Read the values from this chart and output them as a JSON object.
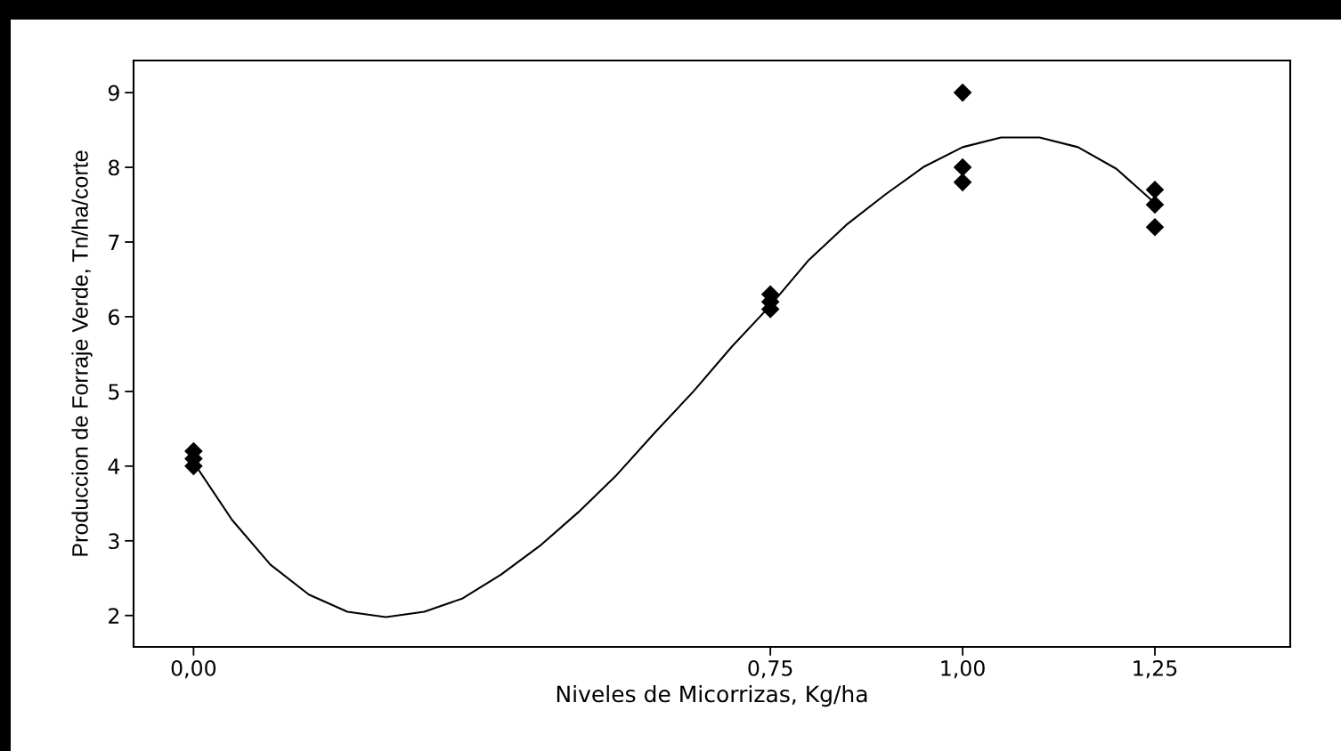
{
  "chart_data": {
    "type": "scatter",
    "xlabel": "Niveles de Micorrizas, Kg/ha",
    "ylabel": "Produccion de Forraje Verde, Tn/ha/corte",
    "xlim": [
      -0.078,
      1.426
    ],
    "ylim": [
      1.58,
      9.43
    ],
    "xticks": [
      {
        "value": 0,
        "label": "0,00"
      },
      {
        "value": 0.75,
        "label": "0,75"
      },
      {
        "value": 1.0,
        "label": "1,00"
      },
      {
        "value": 1.25,
        "label": "1,25"
      }
    ],
    "yticks": [
      2,
      3,
      4,
      5,
      6,
      7,
      8,
      9
    ],
    "grid": false,
    "legend": false,
    "series": [
      {
        "color": "#000000",
        "marker": "diamond",
        "x": [
          0,
          0,
          0,
          0.75,
          0.75,
          0.75,
          1.0,
          1.0,
          1.0,
          1.25,
          1.25,
          1.25
        ],
        "values": [
          4.2,
          4.1,
          4.0,
          6.3,
          6.2,
          6.1,
          9.0,
          8.0,
          7.8,
          7.7,
          7.5,
          7.2
        ]
      },
      {
        "type": "line",
        "color": "#000000",
        "marker": "none",
        "line_style": "solid",
        "x": [
          0,
          0.05,
          0.1,
          0.15,
          0.2,
          0.25,
          0.3,
          0.35,
          0.4,
          0.45,
          0.5,
          0.55,
          0.6,
          0.65,
          0.7,
          0.75,
          0.8,
          0.85,
          0.9,
          0.95,
          1.0,
          1.05,
          1.1,
          1.15,
          1.2,
          1.25
        ],
        "values": [
          4.05,
          3.28,
          2.68,
          2.28,
          2.05,
          1.98,
          2.05,
          2.23,
          2.55,
          2.93,
          3.38,
          3.88,
          4.45,
          5.0,
          5.6,
          6.15,
          6.76,
          7.24,
          7.64,
          8.01,
          8.27,
          8.4,
          8.4,
          8.27,
          7.98,
          7.52
        ]
      }
    ]
  }
}
